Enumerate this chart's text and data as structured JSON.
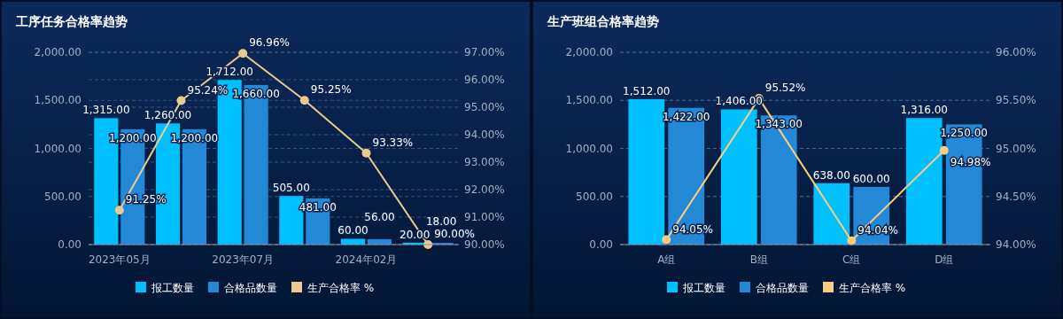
{
  "chart_data": [
    {
      "type": "bar",
      "title": "工序任务合格率趋势",
      "categories": [
        "2023年05月",
        null,
        "2023年07月",
        null,
        "2024年02月",
        null
      ],
      "series": [
        {
          "name": "报工数量",
          "color": "#00c0ff",
          "values": [
            1315,
            1260,
            1712,
            505,
            60,
            20
          ],
          "value_labels": [
            "1,315.00",
            "1,260.00",
            "1,712.00",
            "505.00",
            "60.00",
            "20.00"
          ]
        },
        {
          "name": "合格品数量",
          "color": "#2389d7",
          "values": [
            1200,
            1200,
            1660,
            481,
            56,
            18
          ],
          "value_labels": [
            "1,200.00",
            "1,200.00",
            "1,660.00",
            "481.00",
            "56.00",
            "18.00"
          ]
        },
        {
          "name": "生产合格率 %",
          "type": "line",
          "axis": "y2",
          "color": "#ecc98f",
          "marker": "circle",
          "values": [
            91.25,
            95.24,
            96.96,
            95.25,
            93.33,
            90.0
          ],
          "value_labels": [
            "91.25%",
            "95.24%",
            "96.96%",
            "95.25%",
            "93.33%",
            "90.00%"
          ]
        }
      ],
      "ylim": [
        0,
        2000
      ],
      "yticks": [
        {
          "value": 0,
          "label": "0.00"
        },
        {
          "value": 500,
          "label": "500.00"
        },
        {
          "value": 1000,
          "label": "1,000.00"
        },
        {
          "value": 1500,
          "label": "1,500.00"
        },
        {
          "value": 2000,
          "label": "2,000.00"
        }
      ],
      "y2lim": [
        90,
        97
      ],
      "y2ticks": [
        {
          "value": 90,
          "label": "90.00%"
        },
        {
          "value": 91,
          "label": "91.00%"
        },
        {
          "value": 92,
          "label": "92.00%"
        },
        {
          "value": 93,
          "label": "93.00%"
        },
        {
          "value": 94,
          "label": "94.00%"
        },
        {
          "value": 95,
          "label": "95.00%"
        },
        {
          "value": 96,
          "label": "96.00%"
        },
        {
          "value": 97,
          "label": "97.00%"
        }
      ],
      "grid": "y",
      "legend": "bottom"
    },
    {
      "type": "bar",
      "title": "生产班组合格率趋势",
      "categories": [
        "A组",
        "B组",
        "C组",
        "D组"
      ],
      "series": [
        {
          "name": "报工数量",
          "color": "#00c0ff",
          "values": [
            1512,
            1406,
            638,
            1316
          ],
          "value_labels": [
            "1,512.00",
            "1,406.00",
            "638.00",
            "1,316.00"
          ]
        },
        {
          "name": "合格品数量",
          "color": "#2389d7",
          "values": [
            1422,
            1343,
            600,
            1250
          ],
          "value_labels": [
            "1,422.00",
            "1,343.00",
            "600.00",
            "1,250.00"
          ]
        },
        {
          "name": "生产合格率 %",
          "type": "line",
          "axis": "y2",
          "color": "#f7cd80",
          "marker": "circle",
          "values": [
            94.05,
            95.52,
            94.04,
            94.98
          ],
          "value_labels": [
            "94.05%",
            "95.52%",
            "94.04%",
            "94.98%"
          ]
        }
      ],
      "ylim": [
        0,
        2000
      ],
      "yticks": [
        {
          "value": 0,
          "label": "0.00"
        },
        {
          "value": 500,
          "label": "500.00"
        },
        {
          "value": 1000,
          "label": "1,000.00"
        },
        {
          "value": 1500,
          "label": "1,500.00"
        },
        {
          "value": 2000,
          "label": "2,000.00"
        }
      ],
      "y2lim": [
        94,
        96
      ],
      "y2ticks": [
        {
          "value": 94,
          "label": "94.00%"
        },
        {
          "value": 94.5,
          "label": "94.50%"
        },
        {
          "value": 95,
          "label": "95.00%"
        },
        {
          "value": 95.5,
          "label": "95.50%"
        },
        {
          "value": 96,
          "label": "96.00%"
        }
      ],
      "grid": "y",
      "legend": "bottom"
    }
  ]
}
